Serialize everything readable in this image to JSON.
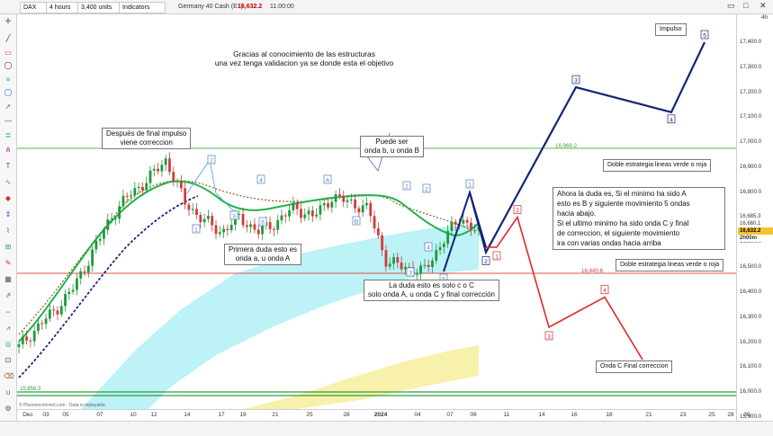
{
  "toolbar": {
    "symbol": "DAX",
    "timeframe": "4 hours",
    "units": "3,400 units",
    "indicators": "Indicators",
    "instrument": "Germany 40 Cash (E1)",
    "price": "16,632.2",
    "time": "11:00:00"
  },
  "timeframe_badge": "4h",
  "watermark": "© Plusoneconnect.com · Data is replayable",
  "annotations": {
    "title": "Gracias al conocimiento de las estructuras\nuna vez tenga validacion ya se donde esta el objetivo",
    "impulse_end": "Después de final impulso\nviene correccion",
    "doubt_b": "Puede ser\nonda b, u onda B",
    "first_doubt": "Primera duda esto es\nonda a, u onda A",
    "doubt_c": "La  duda esto es solo c o C\nsolo onda A, u onda C y final corrección",
    "doubt_is": "Ahora la duda es, Si el minimo ha sido A\nesto es B y siguiente movimiento 5 ondas\nhacia abajo.\nSi el ultimo minimo ha sido onda C y final\nde correccion, el siguiente movimiento\nira con varias ondas hacia arriba",
    "strategy_top": "Doble estrategia lineas verde o roja",
    "strategy_bottom": "Doble estrategia lineas verde o roja",
    "impulso": "Impulso",
    "onda_c": "Onda C Final correccion"
  },
  "levels": {
    "green": "16,968.2",
    "red": "16,440.6",
    "bottom_green": "15,856.3"
  },
  "price_tags": [
    "16,685.3",
    "16,660.1",
    "16,632.2",
    "2h00m"
  ],
  "chart_data": {
    "type": "line",
    "title": "",
    "instrument": "Germany 40 Cash (E1)",
    "timeframe": "4 hours",
    "ylim": [
      15900,
      17500
    ],
    "y_ticks": [
      17400,
      17300,
      17200,
      17100,
      17000,
      16900,
      16800,
      16700,
      16600,
      16500,
      16400,
      16300,
      16200,
      16100,
      16000,
      15900
    ],
    "x_ticks": [
      "Dec",
      "03",
      "05",
      "07",
      "10",
      "12",
      "14",
      "17",
      "19",
      "21",
      "25",
      "28",
      "2024",
      "04",
      "07",
      "09",
      "11",
      "14",
      "16",
      "18",
      "21",
      "23",
      "25",
      "28",
      "30"
    ],
    "price_path": [
      {
        "x": 0,
        "y": 16180
      },
      {
        "x": 1,
        "y": 16260
      },
      {
        "x": 2,
        "y": 16330
      },
      {
        "x": 3,
        "y": 16420
      },
      {
        "x": 4,
        "y": 16560
      },
      {
        "x": 5,
        "y": 16700
      },
      {
        "x": 6,
        "y": 16790
      },
      {
        "x": 7,
        "y": 16850
      },
      {
        "x": 8,
        "y": 16930
      },
      {
        "x": 9,
        "y": 16760
      },
      {
        "x": 10,
        "y": 16690
      },
      {
        "x": 11,
        "y": 16640
      },
      {
        "x": 12,
        "y": 16700
      },
      {
        "x": 13,
        "y": 16640
      },
      {
        "x": 14,
        "y": 16680
      },
      {
        "x": 15,
        "y": 16740
      },
      {
        "x": 16,
        "y": 16700
      },
      {
        "x": 17,
        "y": 16780
      },
      {
        "x": 18,
        "y": 16760
      },
      {
        "x": 19,
        "y": 16730
      },
      {
        "x": 20,
        "y": 16520
      },
      {
        "x": 21,
        "y": 16500
      },
      {
        "x": 22,
        "y": 16480
      },
      {
        "x": 23,
        "y": 16600
      },
      {
        "x": 24,
        "y": 16700
      },
      {
        "x": 25,
        "y": 16632
      }
    ],
    "projection_up": {
      "name": "",
      "labels": [
        "2",
        "3",
        "4",
        "5"
      ],
      "values": [
        16560,
        17220,
        17120,
        17400
      ]
    },
    "projection_down": {
      "name": "",
      "labels": [
        "1",
        "2",
        "3",
        "4",
        "5"
      ],
      "values": [
        16580,
        16700,
        16260,
        16380,
        16130
      ]
    },
    "wave_labels_history": [
      "1",
      "2",
      "3",
      "4",
      "5",
      "A",
      "B",
      "2",
      "3",
      "4",
      "5",
      "1",
      "2",
      "3"
    ],
    "horizontal_levels": [
      16968.2,
      16440.6,
      15856.3
    ]
  }
}
